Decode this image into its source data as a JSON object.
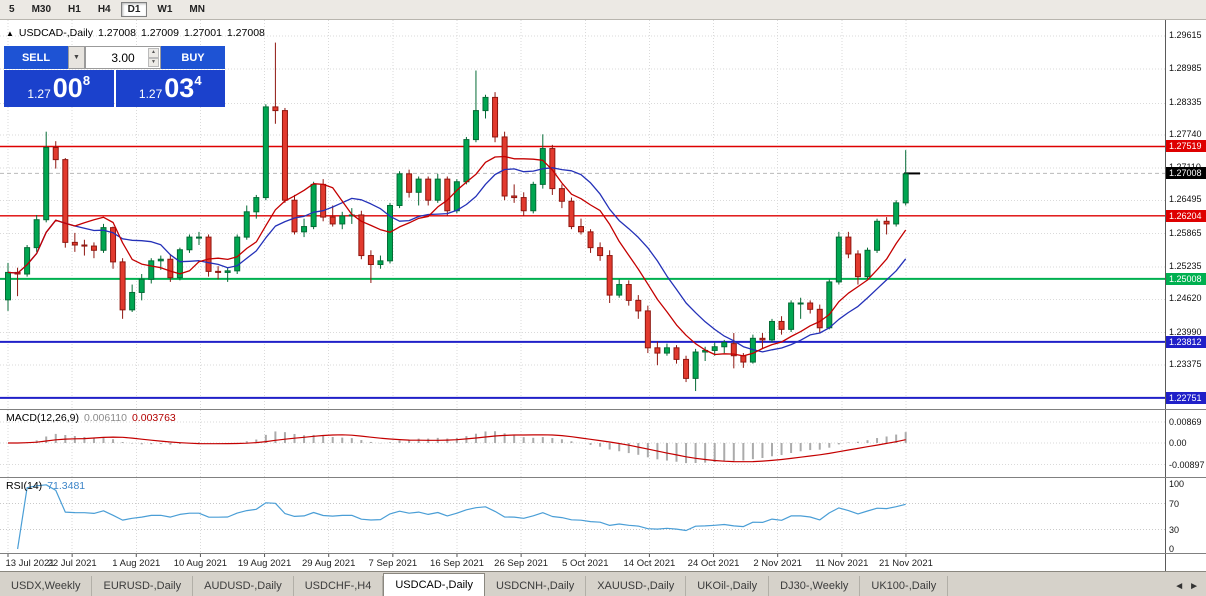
{
  "toolbar": {
    "timeframes": [
      {
        "label": "5"
      },
      {
        "label": "M30"
      },
      {
        "label": "H1"
      },
      {
        "label": "H4"
      },
      {
        "label": "D1",
        "active": true
      },
      {
        "label": "W1"
      },
      {
        "label": "MN"
      }
    ]
  },
  "chart": {
    "info": {
      "arrow": "▲",
      "symbol": "USDCAD-,Daily",
      "open": "1.27008",
      "high": "1.27009",
      "low": "1.27001",
      "close": "1.27008"
    },
    "trade_panel": {
      "sell_label": "SELL",
      "buy_label": "BUY",
      "volume": "3.00",
      "dropdown_icon": "▼",
      "spinner_up": "▲",
      "spinner_down": "▼",
      "bid": {
        "prefix": "1.27",
        "big": "00",
        "sup": "8"
      },
      "ask": {
        "prefix": "1.27",
        "big": "03",
        "sup": "4"
      }
    },
    "price_axis": [
      "1.29615",
      "1.28985",
      "1.28335",
      "1.27740",
      "1.27110",
      "1.26495",
      "1.25865",
      "1.25235",
      "1.24620",
      "1.23990",
      "1.23375"
    ],
    "levels": [
      {
        "label": "1.27519",
        "value": 1.27519,
        "color": "#DE0000",
        "width": 1.4
      },
      {
        "label": "1.26204",
        "value": 1.26204,
        "color": "#DE0000",
        "width": 1.4
      },
      {
        "label": "1.25008",
        "value": 1.25008,
        "color": "#00B050",
        "width": 2
      },
      {
        "label": "1.23812",
        "value": 1.23812,
        "color": "#2020C8",
        "width": 2
      },
      {
        "label": "1.22751",
        "value": 1.22751,
        "color": "#2020C8",
        "width": 2
      }
    ],
    "current_price": {
      "label": "1.27008",
      "value": 1.27008
    },
    "date_axis": [
      "13 Jul 2021",
      "22 Jul 2021",
      "1 Aug 2021",
      "10 Aug 2021",
      "19 Aug 2021",
      "29 Aug 2021",
      "7 Sep 2021",
      "16 Sep 2021",
      "26 Sep 2021",
      "5 Oct 2021",
      "14 Oct 2021",
      "24 Oct 2021",
      "2 Nov 2021",
      "11 Nov 2021",
      "21 Nov 2021"
    ]
  },
  "macd": {
    "label": "MACD(12,26,9)",
    "value1": "0.006110",
    "value2": "0.003763",
    "axis": [
      {
        "label": "0.00869",
        "value": 0.00869
      },
      {
        "label": "0.00",
        "value": 0
      },
      {
        "label": "-0.00897",
        "value": -0.00897
      }
    ]
  },
  "rsi": {
    "label": "RSI(14)",
    "value": "71.3481",
    "axis": [
      {
        "label": "100",
        "value": 100
      },
      {
        "label": "70",
        "value": 70
      },
      {
        "label": "30",
        "value": 30
      },
      {
        "label": "0",
        "value": 0
      }
    ],
    "guides": [
      70,
      30
    ]
  },
  "tabs": {
    "items": [
      {
        "label": "USDX,Weekly"
      },
      {
        "label": "EURUSD-,Daily"
      },
      {
        "label": "AUDUSD-,Daily"
      },
      {
        "label": "USDCHF-,H4"
      },
      {
        "label": "USDCAD-,Daily",
        "active": true
      },
      {
        "label": "USDCNH-,Daily"
      },
      {
        "label": "XAUUSD-,Daily"
      },
      {
        "label": "UKOil-,Daily"
      },
      {
        "label": "DJ30-,Weekly"
      },
      {
        "label": "UK100-,Daily"
      }
    ],
    "scroll_left": "◄",
    "scroll_right": "►"
  },
  "colors": {
    "bull": "#00A651",
    "bull_border": "#046B35",
    "bear": "#E23A2E",
    "bear_border": "#8F1710",
    "ma_fast": "#C40000",
    "ma_slow": "#2431B8",
    "macd_bar": "#ABABAB",
    "macd_signal": "#C40000",
    "rsi_line": "#4A9ED6",
    "grid": "#DADADA",
    "bid_line": "#B9B9B9"
  },
  "chart_data": {
    "type": "candlestick",
    "symbol": "USDCAD-",
    "timeframe": "Daily",
    "price_range_top": 1.2992,
    "price_range_bottom": 1.2254,
    "ma_fast_period": 8,
    "ma_slow_period": 13,
    "macd_params": [
      12,
      26,
      9
    ],
    "rsi_period": 14,
    "candles": [
      [
        1.2461,
        1.2531,
        1.244,
        1.2513
      ],
      [
        1.2513,
        1.2522,
        1.2468,
        1.251
      ],
      [
        1.251,
        1.2565,
        1.2505,
        1.256
      ],
      [
        1.256,
        1.2622,
        1.2552,
        1.2613
      ],
      [
        1.2613,
        1.278,
        1.2608,
        1.275
      ],
      [
        1.275,
        1.2762,
        1.271,
        1.2727
      ],
      [
        1.2727,
        1.273,
        1.256,
        1.257
      ],
      [
        1.257,
        1.2588,
        1.2552,
        1.2565
      ],
      [
        1.2565,
        1.2575,
        1.2545,
        1.2563
      ],
      [
        1.2563,
        1.257,
        1.254,
        1.2555
      ],
      [
        1.2555,
        1.2605,
        1.255,
        1.2598
      ],
      [
        1.2598,
        1.26,
        1.252,
        1.2533
      ],
      [
        1.2533,
        1.254,
        1.2425,
        1.2442
      ],
      [
        1.2442,
        1.249,
        1.2438,
        1.2475
      ],
      [
        1.2475,
        1.251,
        1.246,
        1.25
      ],
      [
        1.25,
        1.254,
        1.2492,
        1.2535
      ],
      [
        1.2535,
        1.2545,
        1.2518,
        1.2538
      ],
      [
        1.2538,
        1.2548,
        1.2495,
        1.2503
      ],
      [
        1.2503,
        1.256,
        1.2498,
        1.2556
      ],
      [
        1.2556,
        1.2585,
        1.255,
        1.258
      ],
      [
        1.258,
        1.259,
        1.2565,
        1.258
      ],
      [
        1.258,
        1.2585,
        1.2505,
        1.2515
      ],
      [
        1.2515,
        1.2525,
        1.25,
        1.2513
      ],
      [
        1.2513,
        1.2522,
        1.2495,
        1.2516
      ],
      [
        1.2516,
        1.2585,
        1.251,
        1.258
      ],
      [
        1.258,
        1.264,
        1.2575,
        1.2628
      ],
      [
        1.2628,
        1.266,
        1.2615,
        1.2655
      ],
      [
        1.2655,
        1.2832,
        1.265,
        1.2827
      ],
      [
        1.2827,
        1.2949,
        1.2795,
        1.282
      ],
      [
        1.282,
        1.2825,
        1.2645,
        1.265
      ],
      [
        1.265,
        1.266,
        1.2585,
        1.259
      ],
      [
        1.259,
        1.2615,
        1.258,
        1.26
      ],
      [
        1.26,
        1.2685,
        1.2595,
        1.268
      ],
      [
        1.268,
        1.269,
        1.261,
        1.2618
      ],
      [
        1.2618,
        1.264,
        1.26,
        1.2605
      ],
      [
        1.2605,
        1.2628,
        1.2595,
        1.262
      ],
      [
        1.262,
        1.2635,
        1.2605,
        1.2622
      ],
      [
        1.2622,
        1.263,
        1.2538,
        1.2545
      ],
      [
        1.2545,
        1.2555,
        1.2493,
        1.2528
      ],
      [
        1.2528,
        1.2545,
        1.252,
        1.2535
      ],
      [
        1.2535,
        1.2645,
        1.253,
        1.264
      ],
      [
        1.264,
        1.2705,
        1.2635,
        1.27
      ],
      [
        1.27,
        1.2708,
        1.2655,
        1.2665
      ],
      [
        1.2665,
        1.2695,
        1.264,
        1.269
      ],
      [
        1.269,
        1.2695,
        1.264,
        1.265
      ],
      [
        1.265,
        1.27,
        1.2645,
        1.269
      ],
      [
        1.269,
        1.2695,
        1.262,
        1.263
      ],
      [
        1.263,
        1.269,
        1.2625,
        1.2685
      ],
      [
        1.2685,
        1.277,
        1.268,
        1.2765
      ],
      [
        1.2765,
        1.2896,
        1.276,
        1.282
      ],
      [
        1.282,
        1.285,
        1.2805,
        1.2845
      ],
      [
        1.2845,
        1.2855,
        1.276,
        1.277
      ],
      [
        1.277,
        1.278,
        1.265,
        1.2658
      ],
      [
        1.2658,
        1.268,
        1.2645,
        1.2655
      ],
      [
        1.2655,
        1.2665,
        1.262,
        1.263
      ],
      [
        1.263,
        1.2685,
        1.2625,
        1.268
      ],
      [
        1.268,
        1.2775,
        1.2672,
        1.2748
      ],
      [
        1.2748,
        1.2755,
        1.266,
        1.2672
      ],
      [
        1.2672,
        1.268,
        1.2635,
        1.2648
      ],
      [
        1.2648,
        1.2655,
        1.2595,
        1.26
      ],
      [
        1.26,
        1.2615,
        1.2585,
        1.259
      ],
      [
        1.259,
        1.2595,
        1.255,
        1.256
      ],
      [
        1.256,
        1.257,
        1.2535,
        1.2545
      ],
      [
        1.2545,
        1.2555,
        1.2455,
        1.247
      ],
      [
        1.247,
        1.25,
        1.2465,
        1.249
      ],
      [
        1.249,
        1.2498,
        1.245,
        1.246
      ],
      [
        1.246,
        1.247,
        1.2425,
        1.244
      ],
      [
        1.244,
        1.245,
        1.236,
        1.237
      ],
      [
        1.237,
        1.2382,
        1.2337,
        1.236
      ],
      [
        1.236,
        1.2378,
        1.2355,
        1.237
      ],
      [
        1.237,
        1.2375,
        1.234,
        1.2348
      ],
      [
        1.2348,
        1.2355,
        1.2305,
        1.2312
      ],
      [
        1.2312,
        1.2368,
        1.2288,
        1.2362
      ],
      [
        1.2362,
        1.2372,
        1.2345,
        1.2365
      ],
      [
        1.2365,
        1.238,
        1.2355,
        1.2372
      ],
      [
        1.2372,
        1.2385,
        1.236,
        1.238
      ],
      [
        1.2378,
        1.2398,
        1.2331,
        1.2355
      ],
      [
        1.2355,
        1.236,
        1.2332,
        1.2343
      ],
      [
        1.2343,
        1.2395,
        1.234,
        1.2388
      ],
      [
        1.2388,
        1.2398,
        1.2368,
        1.2385
      ],
      [
        1.2385,
        1.2425,
        1.238,
        1.242
      ],
      [
        1.242,
        1.243,
        1.2395,
        1.2405
      ],
      [
        1.2405,
        1.246,
        1.24,
        1.2455
      ],
      [
        1.2455,
        1.2465,
        1.2425,
        1.2455
      ],
      [
        1.2455,
        1.246,
        1.2435,
        1.2443
      ],
      [
        1.2443,
        1.2452,
        1.2398,
        1.2408
      ],
      [
        1.2408,
        1.25,
        1.2405,
        1.2495
      ],
      [
        1.2495,
        1.259,
        1.249,
        1.258
      ],
      [
        1.258,
        1.259,
        1.254,
        1.2548
      ],
      [
        1.2548,
        1.2555,
        1.249,
        1.2505
      ],
      [
        1.2505,
        1.256,
        1.25,
        1.2555
      ],
      [
        1.2555,
        1.2615,
        1.255,
        1.261
      ],
      [
        1.261,
        1.2618,
        1.2585,
        1.2605
      ],
      [
        1.2605,
        1.265,
        1.26,
        1.2645
      ],
      [
        1.2645,
        1.2745,
        1.264,
        1.27
      ]
    ]
  }
}
